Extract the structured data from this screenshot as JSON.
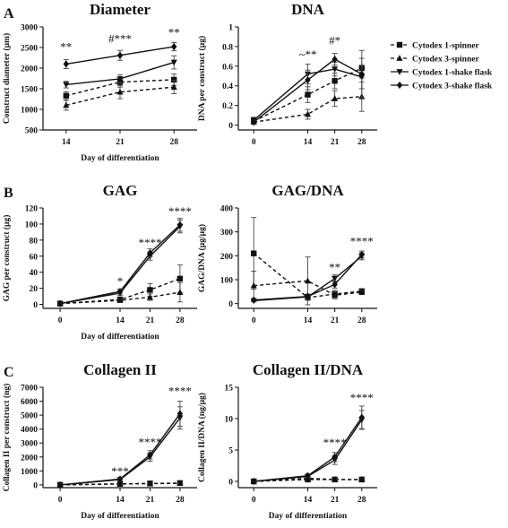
{
  "figure": {
    "legend": {
      "placement": "right, top row",
      "entries": [
        {
          "label": "Cytodex 1-spinner",
          "marker": "square",
          "dash": "dashed"
        },
        {
          "label": "Cytodex 3-spinner",
          "marker": "triangle-up",
          "dash": "dashed"
        },
        {
          "label": "Cytodex 1-shake flask",
          "marker": "triangle-down",
          "dash": "solid"
        },
        {
          "label": "Cytodex 3-shake flask",
          "marker": "diamond",
          "dash": "solid"
        }
      ]
    },
    "panel_labels": [
      "A",
      "B",
      "C"
    ]
  },
  "chart_data": [
    {
      "id": "diameter",
      "panel_label": "A",
      "type": "line",
      "title": "Diameter",
      "xlabel": "Day of differentiation",
      "ylabel": "Construct diameter (µm)",
      "x": [
        14,
        21,
        28
      ],
      "xticks": [
        14,
        21,
        28
      ],
      "xlim": [
        11,
        31
      ],
      "ylim": [
        500,
        3000
      ],
      "yticks": [
        500,
        1000,
        1500,
        2000,
        2500,
        3000
      ],
      "series": [
        {
          "name": "Cytodex 1-spinner",
          "values": [
            1330,
            1660,
            1720
          ],
          "err": [
            100,
            120,
            140
          ]
        },
        {
          "name": "Cytodex 3-spinner",
          "values": [
            1100,
            1420,
            1540
          ],
          "err": [
            120,
            160,
            160
          ]
        },
        {
          "name": "Cytodex 1-shake flask",
          "values": [
            1600,
            1740,
            2140
          ],
          "err": [
            80,
            100,
            160
          ]
        },
        {
          "name": "Cytodex 3-shake flask",
          "values": [
            2100,
            2310,
            2520
          ],
          "err": [
            110,
            120,
            100
          ]
        }
      ],
      "annotations": [
        {
          "x": 14,
          "y": 2420,
          "text": "**"
        },
        {
          "x": 21,
          "y": 2620,
          "text": "#***"
        },
        {
          "x": 28,
          "y": 2770,
          "text": "**"
        }
      ]
    },
    {
      "id": "dna",
      "type": "line",
      "title": "DNA",
      "xlabel": "",
      "ylabel": "DNA per construct (µg)",
      "x": [
        0,
        14,
        21,
        28
      ],
      "xticks": [
        0,
        14,
        21,
        28
      ],
      "xlim": [
        -4,
        32
      ],
      "ylim": [
        -0.05,
        1.0
      ],
      "yticks": [
        0.0,
        0.2,
        0.4,
        0.6,
        0.8,
        1.0
      ],
      "series": [
        {
          "name": "Cytodex 1-spinner",
          "values": [
            0.04,
            0.31,
            0.45,
            0.58
          ],
          "err": [
            0.02,
            0.08,
            0.08,
            0.1
          ]
        },
        {
          "name": "Cytodex 3-spinner",
          "values": [
            0.03,
            0.11,
            0.27,
            0.29
          ],
          "err": [
            0.02,
            0.05,
            0.08,
            0.15
          ]
        },
        {
          "name": "Cytodex 1-shake flask",
          "values": [
            0.05,
            0.52,
            0.57,
            0.49
          ],
          "err": [
            0.03,
            0.1,
            0.07,
            0.12
          ]
        },
        {
          "name": "Cytodex 3-shake flask",
          "values": [
            0.03,
            0.46,
            0.67,
            0.52
          ],
          "err": [
            0.02,
            0.1,
            0.06,
            0.24
          ]
        }
      ],
      "annotations": [
        {
          "x": 14,
          "y": 0.68,
          "text": "~**"
        },
        {
          "x": 21,
          "y": 0.82,
          "text": "#*"
        }
      ]
    },
    {
      "id": "gag",
      "panel_label": "B",
      "type": "line",
      "title": "GAG",
      "xlabel": "Day of differentiation",
      "ylabel": "GAG per construct (µg)",
      "x": [
        0,
        14,
        21,
        28
      ],
      "xticks": [
        0,
        14,
        21,
        28
      ],
      "xlim": [
        -4,
        32
      ],
      "ylim": [
        -5,
        120
      ],
      "yticks": [
        0,
        20,
        40,
        60,
        80,
        100,
        120
      ],
      "series": [
        {
          "name": "Cytodex 1-spinner",
          "values": [
            1,
            6,
            18,
            32
          ],
          "err": [
            0.5,
            2,
            8,
            17
          ]
        },
        {
          "name": "Cytodex 3-spinner",
          "values": [
            1,
            5,
            9,
            15
          ],
          "err": [
            0.5,
            2,
            4,
            12
          ]
        },
        {
          "name": "Cytodex 1-shake flask",
          "values": [
            1,
            14,
            60,
            97
          ],
          "err": [
            0.5,
            3,
            5,
            8
          ]
        },
        {
          "name": "Cytodex 3-shake flask",
          "values": [
            1,
            16,
            64,
            99
          ],
          "err": [
            0.5,
            3,
            5,
            8
          ]
        }
      ],
      "annotations": [
        {
          "x": 14,
          "y": 24,
          "text": "*"
        },
        {
          "x": 21,
          "y": 72,
          "text": "****"
        },
        {
          "x": 28,
          "y": 111,
          "text": "****"
        }
      ]
    },
    {
      "id": "gag_dna",
      "type": "line",
      "title": "GAG/DNA",
      "xlabel": "",
      "ylabel": "GAG/DNA (µg/µg)",
      "x": [
        0,
        14,
        21,
        28
      ],
      "xticks": [
        0,
        14,
        21,
        28
      ],
      "xlim": [
        -4,
        32
      ],
      "ylim": [
        -20,
        400
      ],
      "yticks": [
        0,
        100,
        200,
        300,
        400
      ],
      "series": [
        {
          "name": "Cytodex 1-spinner",
          "values": [
            210,
            25,
            40,
            52
          ],
          "err": [
            150,
            10,
            15,
            10
          ]
        },
        {
          "name": "Cytodex 3-spinner",
          "values": [
            75,
            95,
            35,
            48
          ],
          "err": [
            60,
            100,
            15,
            10
          ]
        },
        {
          "name": "Cytodex 1-shake flask",
          "values": [
            12,
            28,
            105,
            198
          ],
          "err": [
            5,
            10,
            15,
            15
          ]
        },
        {
          "name": "Cytodex 3-shake flask",
          "values": [
            15,
            30,
            80,
            205
          ],
          "err": [
            5,
            10,
            15,
            15
          ]
        }
      ],
      "annotations": [
        {
          "x": 21,
          "y": 135,
          "text": "**"
        },
        {
          "x": 28,
          "y": 245,
          "text": "****"
        }
      ]
    },
    {
      "id": "collagen",
      "panel_label": "C",
      "type": "line",
      "title": "Collagen II",
      "xlabel": "Day of differentiation",
      "ylabel": "Collagen II per construct (ng)",
      "x": [
        0,
        14,
        21,
        28
      ],
      "xticks": [
        0,
        14,
        21,
        28
      ],
      "xlim": [
        -4,
        32
      ],
      "ylim": [
        -200,
        7000
      ],
      "yticks": [
        0,
        1000,
        2000,
        3000,
        4000,
        5000,
        6000,
        7000
      ],
      "series": [
        {
          "name": "Cytodex 1-spinner",
          "values": [
            0,
            80,
            100,
            130
          ],
          "err": [
            20,
            30,
            40,
            40
          ]
        },
        {
          "name": "Cytodex 3-spinner",
          "values": [
            0,
            60,
            90,
            110
          ],
          "err": [
            20,
            30,
            30,
            40
          ]
        },
        {
          "name": "Cytodex 1-shake flask",
          "values": [
            0,
            380,
            2000,
            4800
          ],
          "err": [
            20,
            120,
            300,
            800
          ]
        },
        {
          "name": "Cytodex 3-shake flask",
          "values": [
            0,
            420,
            2150,
            5100
          ],
          "err": [
            20,
            120,
            300,
            900
          ]
        }
      ],
      "annotations": [
        {
          "x": 14,
          "y": 700,
          "text": "***"
        },
        {
          "x": 21,
          "y": 2800,
          "text": "****"
        },
        {
          "x": 28,
          "y": 6450,
          "text": "****"
        }
      ]
    },
    {
      "id": "collagen_dna",
      "type": "line",
      "title": "Collagen II/DNA",
      "xlabel": "Day of differentiation",
      "ylabel": "Collagen II/DNA (ng/µg)",
      "x": [
        0,
        14,
        21,
        28
      ],
      "xticks": [
        0,
        14,
        21,
        28
      ],
      "xlim": [
        -4,
        32
      ],
      "ylim": [
        -1,
        15
      ],
      "yticks": [
        0,
        5,
        10,
        15
      ],
      "series": [
        {
          "name": "Cytodex 1-spinner",
          "values": [
            0,
            0.3,
            0.3,
            0.3
          ],
          "err": [
            0.1,
            0.2,
            0.1,
            0.2
          ]
        },
        {
          "name": "Cytodex 3-spinner",
          "values": [
            0,
            0.5,
            0.3,
            0.3
          ],
          "err": [
            0.1,
            0.2,
            0.1,
            0.2
          ]
        },
        {
          "name": "Cytodex 1-shake flask",
          "values": [
            0,
            0.8,
            3.4,
            9.8
          ],
          "err": [
            0.1,
            0.3,
            0.7,
            1.5
          ]
        },
        {
          "name": "Cytodex 3-shake flask",
          "values": [
            0,
            0.9,
            3.9,
            10.2
          ],
          "err": [
            0.1,
            0.3,
            0.7,
            1.8
          ]
        }
      ],
      "annotations": [
        {
          "x": 21,
          "y": 5.6,
          "text": "****"
        },
        {
          "x": 28,
          "y": 12.7,
          "text": "****"
        }
      ]
    }
  ]
}
